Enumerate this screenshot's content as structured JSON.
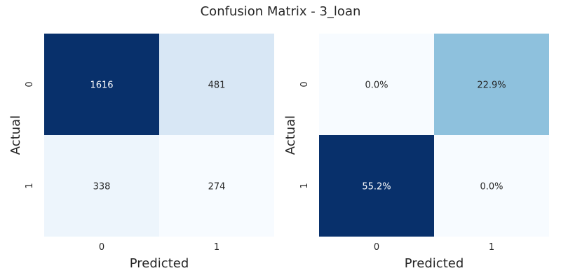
{
  "title": "Confusion Matrix - 3_loan",
  "chart_data": [
    {
      "type": "heatmap",
      "xlabel": "Predicted",
      "ylabel": "Actual",
      "x_categories": [
        "0",
        "1"
      ],
      "y_categories": [
        "0",
        "1"
      ],
      "values": [
        [
          1616,
          481
        ],
        [
          338,
          274
        ]
      ],
      "labels": [
        [
          "1616",
          "481"
        ],
        [
          "338",
          "274"
        ]
      ],
      "colormap": "Blues",
      "vmin": 274,
      "vmax": 1616,
      "colorbar": false
    },
    {
      "type": "heatmap",
      "xlabel": "Predicted",
      "ylabel": "Actual",
      "x_categories": [
        "0",
        "1"
      ],
      "y_categories": [
        "0",
        "1"
      ],
      "values": [
        [
          0.0,
          22.9
        ],
        [
          55.2,
          0.0
        ]
      ],
      "labels": [
        [
          "0.0%",
          "22.9%"
        ],
        [
          "55.2%",
          "0.0%"
        ]
      ],
      "colormap": "Blues",
      "vmin": 0,
      "vmax": 55.2,
      "colorbar": false
    }
  ]
}
